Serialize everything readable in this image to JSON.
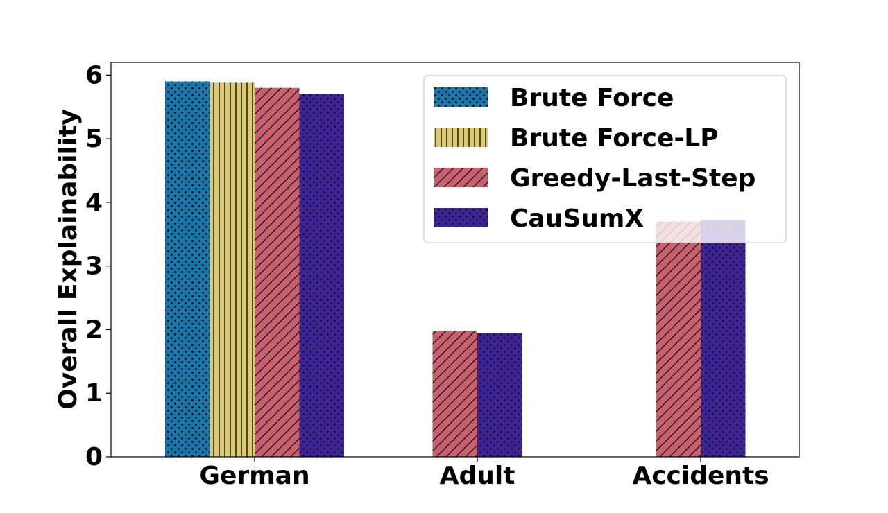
{
  "chart_data": {
    "type": "bar",
    "title": "",
    "xlabel": "",
    "ylabel": "Overall Explainability",
    "ylim": [
      0,
      6.2
    ],
    "yticks": [
      0,
      1,
      2,
      3,
      4,
      5,
      6
    ],
    "categories": [
      "German",
      "Adult",
      "Accidents"
    ],
    "grid": false,
    "legend_position": "top-right",
    "series": [
      {
        "name": "Brute Force",
        "color": "#1a75a8",
        "pattern": "dots",
        "values": [
          5.9,
          null,
          null
        ]
      },
      {
        "name": "Brute Force-LP",
        "color": "#dccb73",
        "pattern": "vertical-lines",
        "values": [
          5.88,
          null,
          null
        ]
      },
      {
        "name": "Greedy-Last-Step",
        "color": "#c9606f",
        "pattern": "diagonal-lines",
        "values": [
          5.8,
          1.98,
          3.7
        ]
      },
      {
        "name": "CauSumX",
        "color": "#3c2593",
        "pattern": "stars",
        "values": [
          5.7,
          1.95,
          3.72
        ]
      }
    ]
  }
}
